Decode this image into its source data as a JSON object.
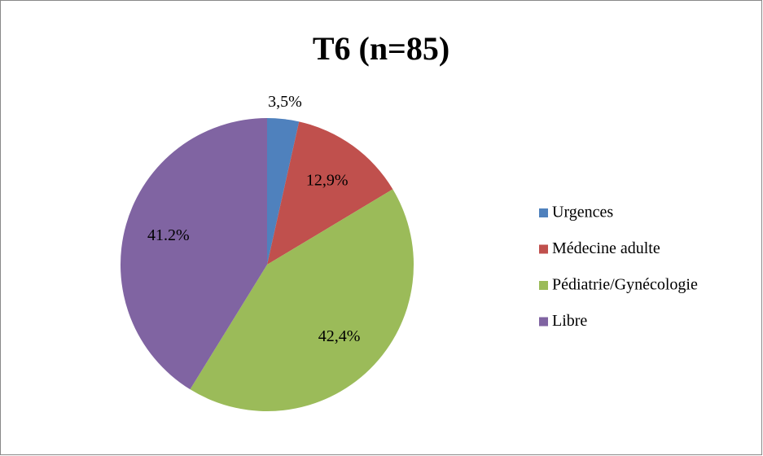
{
  "chart_data": {
    "type": "pie",
    "title": "T6 (n=85)",
    "categories": [
      "Urgences",
      "Médecine adulte",
      "Pédiatrie/Gynécologie",
      "Libre"
    ],
    "values": [
      3.5,
      12.9,
      42.4,
      41.2
    ],
    "value_labels": [
      "3,5%",
      "12,9%",
      "42,4%",
      "41.2%"
    ],
    "colors": [
      "#4f81bd",
      "#c0504d",
      "#9bbb59",
      "#8064a2"
    ],
    "legend": "right"
  }
}
